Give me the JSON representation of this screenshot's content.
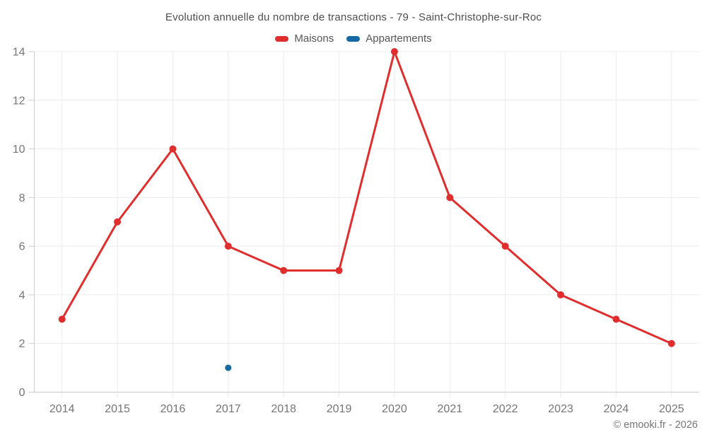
{
  "header": {
    "title": "Evolution annuelle du nombre de transactions - 79 - Saint-Christophe-sur-Roc"
  },
  "footer": {
    "copyright": "© emooki.fr - 2026"
  },
  "colors": {
    "maisons": "#e02e2e",
    "appartements": "#1669a2",
    "grid": "#ececec",
    "axis": "#cccccc",
    "tick_text": "#757575",
    "title_text": "#4e4e4e"
  },
  "chart_data": {
    "type": "line",
    "title": "Evolution annuelle du nombre de transactions - 79 - Saint-Christophe-sur-Roc",
    "xlabel": "",
    "ylabel": "",
    "categories": [
      "2014",
      "2015",
      "2016",
      "2017",
      "2018",
      "2019",
      "2020",
      "2021",
      "2022",
      "2023",
      "2024",
      "2025"
    ],
    "series": [
      {
        "name": "Maisons",
        "color": "#e02e2e",
        "values": [
          3,
          7,
          10,
          6,
          5,
          5,
          14,
          8,
          6,
          4,
          3,
          2
        ]
      },
      {
        "name": "Appartements",
        "color": "#1669a2",
        "values": [
          null,
          null,
          null,
          1,
          null,
          null,
          null,
          null,
          null,
          null,
          null,
          null
        ]
      }
    ],
    "ylim": [
      0,
      14
    ],
    "yticks": [
      0,
      2,
      4,
      6,
      8,
      10,
      12,
      14
    ],
    "grid": true,
    "legend_position": "top"
  }
}
